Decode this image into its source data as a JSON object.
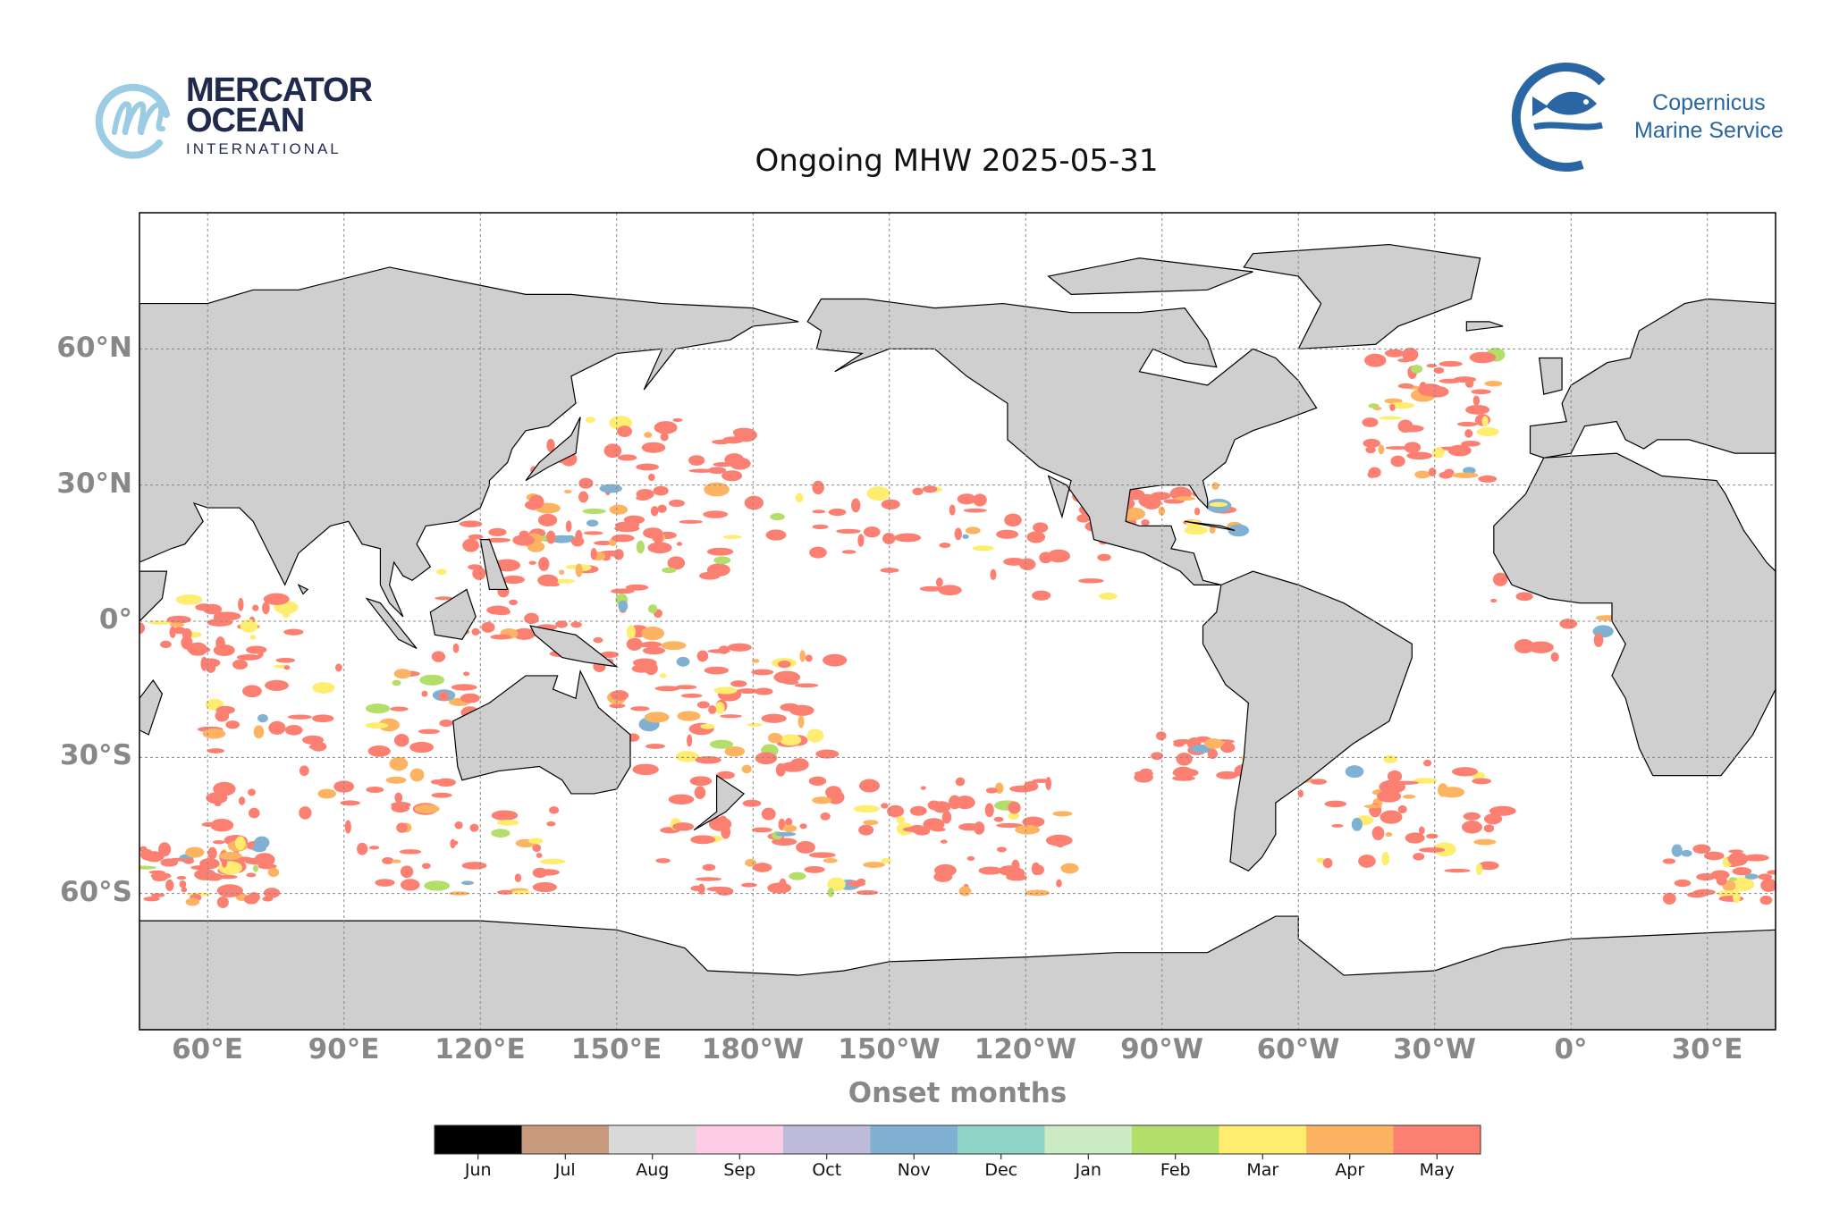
{
  "header": {
    "title": "Ongoing MHW 2025-05-31",
    "logo_left": {
      "line1": "MERCATOR",
      "line2": "OCEAN",
      "line3": "INTERNATIONAL",
      "color": "#1f2a4d",
      "accent": "#9ccbe4"
    },
    "logo_right": {
      "line1": "Copernicus",
      "line2": "Marine Service",
      "color": "#2a66a3"
    }
  },
  "map": {
    "projection": "plate carree",
    "lon_range": [
      "45°E",
      "45°E (wrapped, 360°)"
    ],
    "land_color": "#cfcfcf",
    "grid": true,
    "lat_labels": [
      "60°N",
      "30°N",
      "0°",
      "30°S",
      "60°S"
    ],
    "lon_labels": [
      "60°E",
      "90°E",
      "120°E",
      "150°E",
      "180°W",
      "150°W",
      "120°W",
      "90°W",
      "60°W",
      "30°W",
      "0°",
      "30°E"
    ]
  },
  "colorbar": {
    "label": "Onset months",
    "entries": [
      {
        "month": "Jun",
        "color": "#000000"
      },
      {
        "month": "Jul",
        "color": "#c99b7e"
      },
      {
        "month": "Aug",
        "color": "#d9d9d9"
      },
      {
        "month": "Sep",
        "color": "#fccde5"
      },
      {
        "month": "Oct",
        "color": "#bebada"
      },
      {
        "month": "Nov",
        "color": "#80b1d3"
      },
      {
        "month": "Dec",
        "color": "#8dd3c7"
      },
      {
        "month": "Jan",
        "color": "#ccebc5"
      },
      {
        "month": "Feb",
        "color": "#b3de69"
      },
      {
        "month": "Mar",
        "color": "#ffed6f"
      },
      {
        "month": "Apr",
        "color": "#fdb462"
      },
      {
        "month": "May",
        "color": "#fb8072"
      }
    ]
  },
  "chart_data": {
    "type": "heatmap",
    "title": "Ongoing MHW 2025-05-31",
    "legend_title": "Onset months",
    "categories": [
      "Jun",
      "Jul",
      "Aug",
      "Sep",
      "Oct",
      "Nov",
      "Dec",
      "Jan",
      "Feb",
      "Mar",
      "Apr",
      "May"
    ],
    "dominant_category": "May",
    "legend_placement": "bottom"
  }
}
